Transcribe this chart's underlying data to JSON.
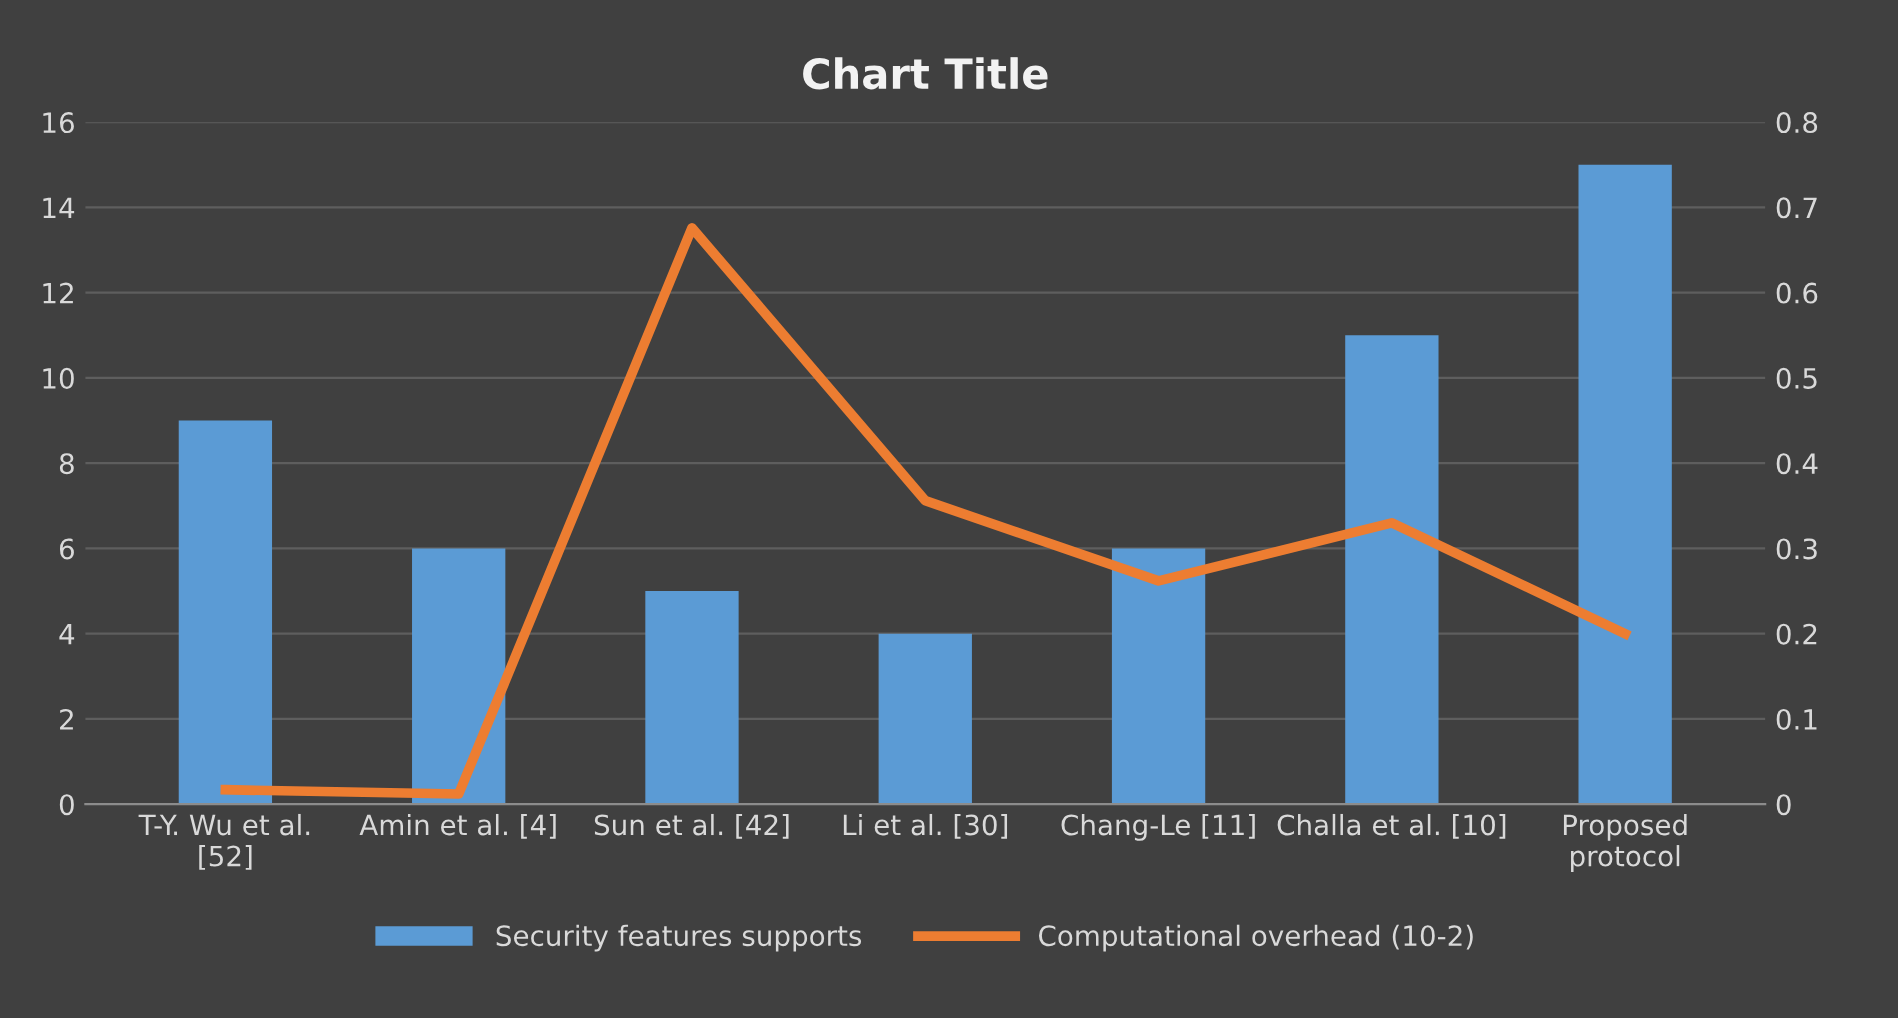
{
  "chart_data": {
    "type": "bar",
    "title": "Chart Title",
    "categories": [
      "T-Y. Wu et al.\n[52]",
      "Amin et al. [4]",
      "Sun et al. [42]",
      "Li et al. [30]",
      "Chang-Le [11]",
      "Challa et al. [10]",
      "Proposed\nprotocol"
    ],
    "series": [
      {
        "name": "Security features supports",
        "color": "#5b9bd5",
        "values": [
          9,
          6,
          5,
          4,
          6,
          11,
          15
        ]
      },
      {
        "name": "Computational overhead (10-2)",
        "type": "line",
        "axis": "y2",
        "color": "#ed7d31",
        "values": [
          0.017,
          0.012,
          0.676,
          0.356,
          0.262,
          0.33,
          0.2
        ]
      }
    ],
    "ylim": [
      0,
      16
    ],
    "yticks": [
      0,
      2,
      4,
      6,
      8,
      10,
      12,
      14,
      16
    ],
    "y2lim": [
      0,
      0.8
    ],
    "y2ticks": [
      0,
      0.1,
      0.2,
      0.3,
      0.4,
      0.5,
      0.6,
      0.7,
      0.8
    ],
    "grid": "y",
    "legend": "bottom",
    "marker": "none",
    "line_style": "solid"
  }
}
